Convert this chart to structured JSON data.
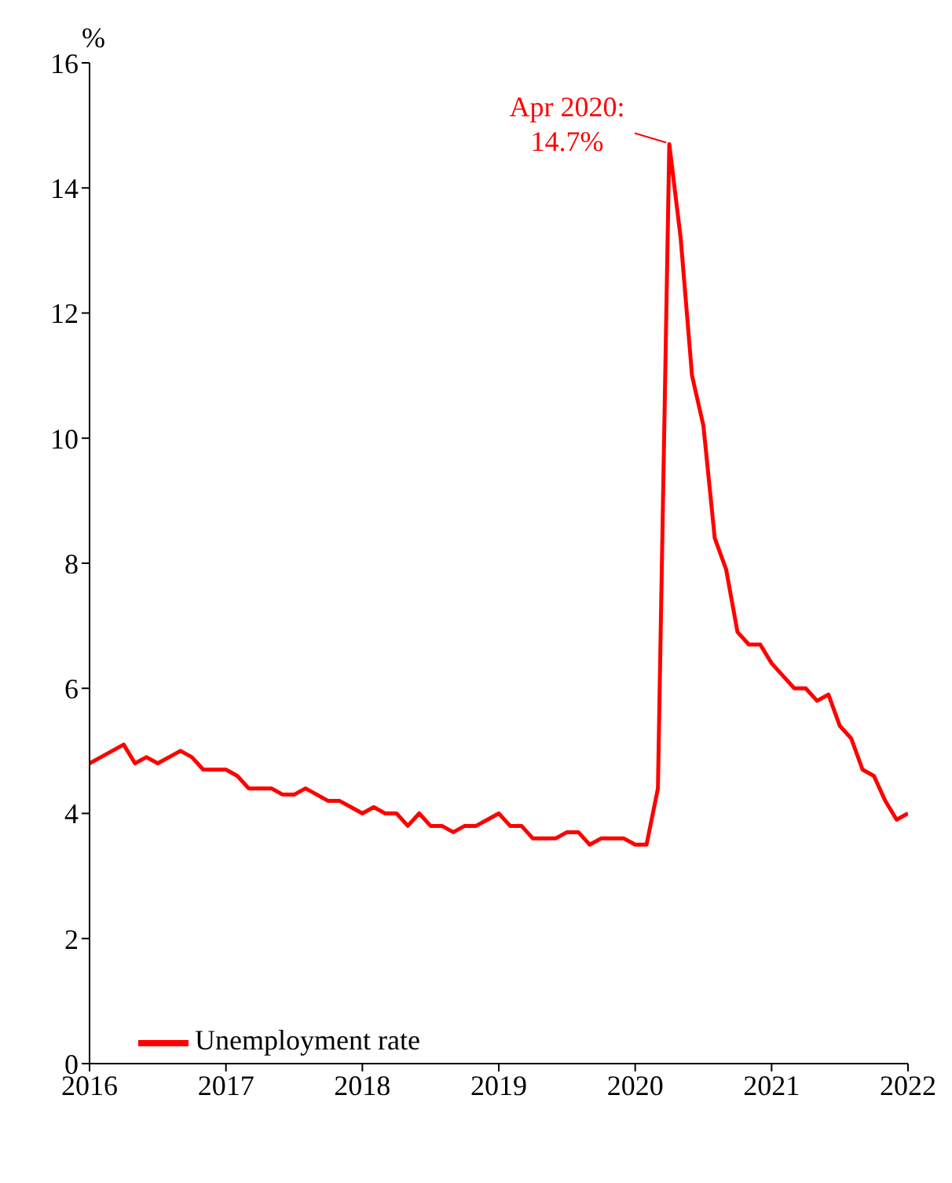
{
  "chart_data": {
    "type": "line",
    "ylabel": "%",
    "xlim": [
      "2016",
      "2022"
    ],
    "xticks": [
      "2016",
      "2017",
      "2018",
      "2019",
      "2020",
      "2021",
      "2022"
    ],
    "ylim": [
      0,
      16
    ],
    "yticks": [
      0,
      2,
      4,
      6,
      8,
      10,
      12,
      14,
      16
    ],
    "grid": false,
    "legend": "bottom left",
    "x": [
      "2016-01",
      "2016-02",
      "2016-03",
      "2016-04",
      "2016-05",
      "2016-06",
      "2016-07",
      "2016-08",
      "2016-09",
      "2016-10",
      "2016-11",
      "2016-12",
      "2017-01",
      "2017-02",
      "2017-03",
      "2017-04",
      "2017-05",
      "2017-06",
      "2017-07",
      "2017-08",
      "2017-09",
      "2017-10",
      "2017-11",
      "2017-12",
      "2018-01",
      "2018-02",
      "2018-03",
      "2018-04",
      "2018-05",
      "2018-06",
      "2018-07",
      "2018-08",
      "2018-09",
      "2018-10",
      "2018-11",
      "2018-12",
      "2019-01",
      "2019-02",
      "2019-03",
      "2019-04",
      "2019-05",
      "2019-06",
      "2019-07",
      "2019-08",
      "2019-09",
      "2019-10",
      "2019-11",
      "2019-12",
      "2020-01",
      "2020-02",
      "2020-03",
      "2020-04",
      "2020-05",
      "2020-06",
      "2020-07",
      "2020-08",
      "2020-09",
      "2020-10",
      "2020-11",
      "2020-12",
      "2021-01",
      "2021-02",
      "2021-03",
      "2021-04",
      "2021-05",
      "2021-06",
      "2021-07",
      "2021-08",
      "2021-09",
      "2021-10",
      "2021-11",
      "2021-12",
      "2022-01"
    ],
    "series": [
      {
        "name": "Unemployment rate",
        "color": "#ff0000",
        "values": [
          4.8,
          4.9,
          5.0,
          5.1,
          4.8,
          4.9,
          4.8,
          4.9,
          5.0,
          4.9,
          4.7,
          4.7,
          4.7,
          4.6,
          4.4,
          4.4,
          4.4,
          4.3,
          4.3,
          4.4,
          4.3,
          4.2,
          4.2,
          4.1,
          4.0,
          4.1,
          4.0,
          4.0,
          3.8,
          4.0,
          3.8,
          3.8,
          3.7,
          3.8,
          3.8,
          3.9,
          4.0,
          3.8,
          3.8,
          3.6,
          3.6,
          3.6,
          3.7,
          3.7,
          3.5,
          3.6,
          3.6,
          3.6,
          3.5,
          3.5,
          4.4,
          14.7,
          13.2,
          11.0,
          10.2,
          8.4,
          7.9,
          6.9,
          6.7,
          6.7,
          6.4,
          6.2,
          6.0,
          6.0,
          5.8,
          5.9,
          5.4,
          5.2,
          4.7,
          4.6,
          4.2,
          3.9,
          4.0
        ]
      }
    ],
    "annotations": [
      {
        "text": "Apr 2020:\n14.7%",
        "x": "2020-04",
        "y": 14.7
      }
    ]
  }
}
